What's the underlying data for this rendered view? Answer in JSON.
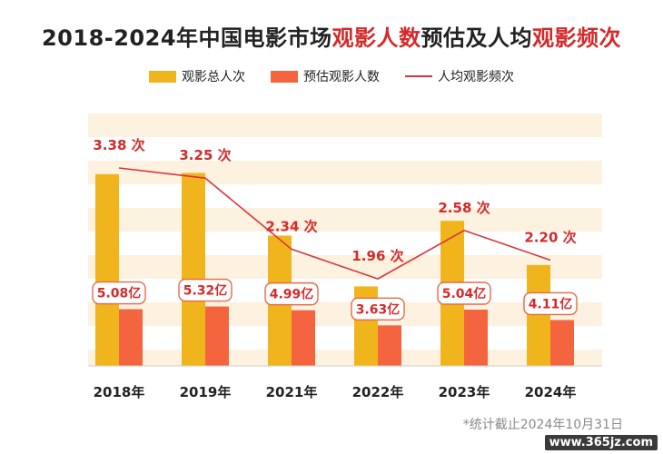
{
  "title": {
    "parts": [
      {
        "text": "2018-2024年中国电影市场",
        "highlight": false
      },
      {
        "text": "观影人数",
        "highlight": true
      },
      {
        "text": "预估及",
        "highlight": false
      },
      {
        "text": "人均",
        "highlight": false
      },
      {
        "text": "观影频次",
        "highlight": true
      }
    ]
  },
  "colors": {
    "total_bar": "#f0b51c",
    "estimate_bar": "#f4653f",
    "line": "#d9343a",
    "band": "#fdf1df",
    "label_border": "#e8684a",
    "label_text": "#d42a2a"
  },
  "chart_data": {
    "type": "bar",
    "categories": [
      "2018年",
      "2019年",
      "2021年",
      "2022年",
      "2023年",
      "2024年"
    ],
    "series": [
      {
        "name": "观影总人次",
        "kind": "bar",
        "values": [
          17.17,
          17.28,
          11.67,
          7.12,
          12.99,
          9.04
        ]
      },
      {
        "name": "预估观影人数",
        "kind": "bar",
        "values": [
          5.08,
          5.32,
          4.99,
          3.63,
          5.04,
          4.11
        ],
        "labels": [
          "5.08亿",
          "5.32亿",
          "4.99亿",
          "3.63亿",
          "5.04亿",
          "4.11亿"
        ]
      },
      {
        "name": "人均观影频次",
        "kind": "line",
        "values": [
          3.38,
          3.25,
          2.34,
          1.96,
          2.58,
          2.2
        ],
        "labels": [
          "3.38 次",
          "3.25 次",
          "2.34 次",
          "1.96 次",
          "2.58 次",
          "2.20 次"
        ]
      }
    ],
    "legend_position": "top-center",
    "grid": false
  },
  "footnote": "*统计截止2024年10月31日",
  "watermark": "www.365jz.com"
}
